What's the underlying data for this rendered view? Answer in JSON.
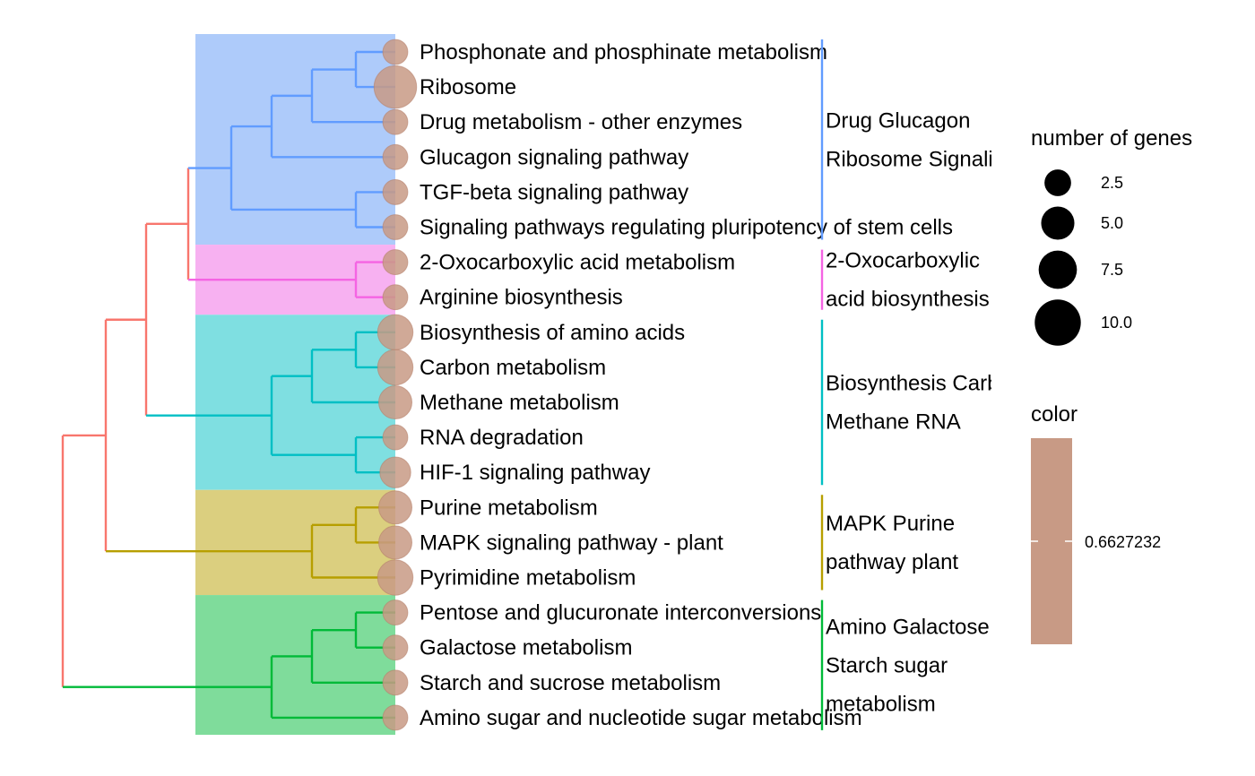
{
  "tree": {
    "terms": [
      "Phosphonate and phosphinate metabolism",
      "Ribosome",
      "Drug metabolism - other enzymes",
      "Glucagon signaling pathway",
      "TGF-beta signaling pathway",
      "Signaling pathways regulating pluripotency of stem cells",
      "2-Oxocarboxylic acid metabolism",
      "Arginine biosynthesis",
      "Biosynthesis of amino acids",
      "Carbon metabolism",
      "Methane metabolism",
      "RNA degradation",
      "HIF-1 signaling pathway",
      "Purine metabolism",
      "MAPK signaling pathway - plant",
      "Pyrimidine metabolism",
      "Pentose and glucuronate interconversions",
      "Galactose metabolism",
      "Starch and sucrose metabolism",
      "Amino sugar and nucleotide sugar metabolism"
    ],
    "gene_counts": [
      2,
      10,
      2,
      2,
      2,
      2,
      2,
      2,
      6,
      6,
      5,
      2,
      4,
      5,
      5,
      6,
      2,
      2,
      2,
      2
    ],
    "clusters": [
      {
        "members": [
          0,
          5
        ],
        "color": "#619cff",
        "highlight": "#aecbfa",
        "labels": [
          "Drug Glucagon",
          "Ribosome Signaling"
        ]
      },
      {
        "members": [
          6,
          7
        ],
        "color": "#f564e3",
        "highlight": "#f7b1f1",
        "labels": [
          "2-Oxocarboxylic",
          "acid biosynthesis"
        ]
      },
      {
        "members": [
          8,
          12
        ],
        "color": "#00bfc4",
        "highlight": "#7fdfe1",
        "labels": [
          "Biosynthesis Carbon",
          "Methane RNA"
        ]
      },
      {
        "members": [
          13,
          15
        ],
        "color": "#b79f00",
        "highlight": "#dbcf7f",
        "labels": [
          "MAPK Purine",
          "pathway plant"
        ]
      },
      {
        "members": [
          16,
          19
        ],
        "color": "#00ba38",
        "highlight": "#7fdc9b",
        "labels": [
          "Amino Galactose",
          "Starch sugar",
          "metabolism"
        ]
      }
    ],
    "root_color": "#f8766d",
    "point_color": "#c89a85"
  },
  "legend": {
    "size_title": "number of genes",
    "size_breaks": [
      "2.5",
      "5.0",
      "7.5",
      "10.0"
    ],
    "color_title": "color",
    "color_value": "0.6627232",
    "color_fill": "#c89a85"
  }
}
